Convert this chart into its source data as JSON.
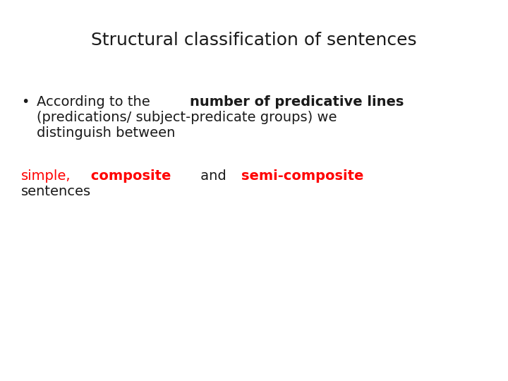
{
  "title": "Structural classification of sentences",
  "title_fontsize": 18,
  "title_color": "#1a1a1a",
  "background_color": "#ffffff",
  "bullet_fontsize": 14,
  "bullet_color": "#1a1a1a",
  "line1_normal": "According to the ",
  "line1_bold": "number of predicative lines",
  "line2": "(predications/ subject-predicate groups) we",
  "line3": "distinguish between",
  "simple_text": "simple,",
  "composite_text": " composite",
  "and_text": " and ",
  "semicomposite_text": "semi-composite",
  "red_color": "#ff0000",
  "last_line": "sentences",
  "last_line_color": "#1a1a1a"
}
